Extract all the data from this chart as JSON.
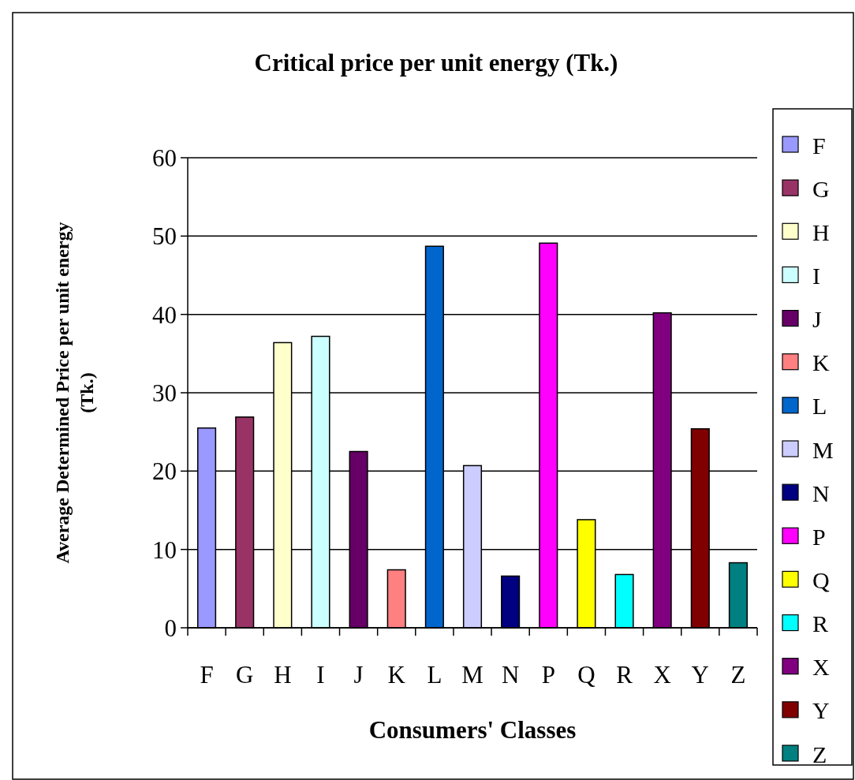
{
  "chart_data": {
    "type": "bar",
    "title": "Critical price per unit energy (Tk.)",
    "xlabel": "Consumers' Classes",
    "ylabel": "Average Determined Price per unit energy (Tk.)",
    "categories": [
      "F",
      "G",
      "H",
      "I",
      "J",
      "K",
      "L",
      "M",
      "N",
      "P",
      "Q",
      "R",
      "X",
      "Y",
      "Z"
    ],
    "series": [
      {
        "name": "F",
        "color": "#9999ff",
        "values": [
          25.5,
          null,
          null,
          null,
          null,
          null,
          null,
          null,
          null,
          null,
          null,
          null,
          null,
          null,
          null
        ]
      },
      {
        "name": "G",
        "color": "#993366",
        "values": [
          null,
          26.9,
          null,
          null,
          null,
          null,
          null,
          null,
          null,
          null,
          null,
          null,
          null,
          null,
          null
        ]
      },
      {
        "name": "H",
        "color": "#ffffcc",
        "values": [
          null,
          null,
          36.4,
          null,
          null,
          null,
          null,
          null,
          null,
          null,
          null,
          null,
          null,
          null,
          null
        ]
      },
      {
        "name": "I",
        "color": "#ccffff",
        "values": [
          null,
          null,
          null,
          37.2,
          null,
          null,
          null,
          null,
          null,
          null,
          null,
          null,
          null,
          null,
          null
        ]
      },
      {
        "name": "J",
        "color": "#660066",
        "values": [
          null,
          null,
          null,
          null,
          22.5,
          null,
          null,
          null,
          null,
          null,
          null,
          null,
          null,
          null,
          null
        ]
      },
      {
        "name": "K",
        "color": "#ff8080",
        "values": [
          null,
          null,
          null,
          null,
          null,
          7.4,
          null,
          null,
          null,
          null,
          null,
          null,
          null,
          null,
          null
        ]
      },
      {
        "name": "L",
        "color": "#0066cc",
        "values": [
          null,
          null,
          null,
          null,
          null,
          null,
          48.7,
          null,
          null,
          null,
          null,
          null,
          null,
          null,
          null
        ]
      },
      {
        "name": "M",
        "color": "#ccccff",
        "values": [
          null,
          null,
          null,
          null,
          null,
          null,
          null,
          20.7,
          null,
          null,
          null,
          null,
          null,
          null,
          null
        ]
      },
      {
        "name": "N",
        "color": "#000080",
        "values": [
          null,
          null,
          null,
          null,
          null,
          null,
          null,
          null,
          6.6,
          null,
          null,
          null,
          null,
          null,
          null
        ]
      },
      {
        "name": "P",
        "color": "#ff00ff",
        "values": [
          null,
          null,
          null,
          null,
          null,
          null,
          null,
          null,
          null,
          49.1,
          null,
          null,
          null,
          null,
          null
        ]
      },
      {
        "name": "Q",
        "color": "#ffff00",
        "values": [
          null,
          null,
          null,
          null,
          null,
          null,
          null,
          null,
          null,
          null,
          13.8,
          null,
          null,
          null,
          null
        ]
      },
      {
        "name": "R",
        "color": "#00ffff",
        "values": [
          null,
          null,
          null,
          null,
          null,
          null,
          null,
          null,
          null,
          null,
          null,
          6.8,
          null,
          null,
          null
        ]
      },
      {
        "name": "X",
        "color": "#800080",
        "values": [
          null,
          null,
          null,
          null,
          null,
          null,
          null,
          null,
          null,
          null,
          null,
          null,
          40.2,
          null,
          null
        ]
      },
      {
        "name": "Y",
        "color": "#800000",
        "values": [
          null,
          null,
          null,
          null,
          null,
          null,
          null,
          null,
          null,
          null,
          null,
          null,
          null,
          25.4,
          null
        ]
      },
      {
        "name": "Z",
        "color": "#008080",
        "values": [
          null,
          null,
          null,
          null,
          null,
          null,
          null,
          null,
          null,
          null,
          null,
          null,
          null,
          null,
          8.3
        ]
      }
    ],
    "ylim": [
      0,
      60
    ],
    "yticks": [
      0,
      10,
      20,
      30,
      40,
      50,
      60
    ],
    "grid": "y",
    "legend": "right"
  }
}
